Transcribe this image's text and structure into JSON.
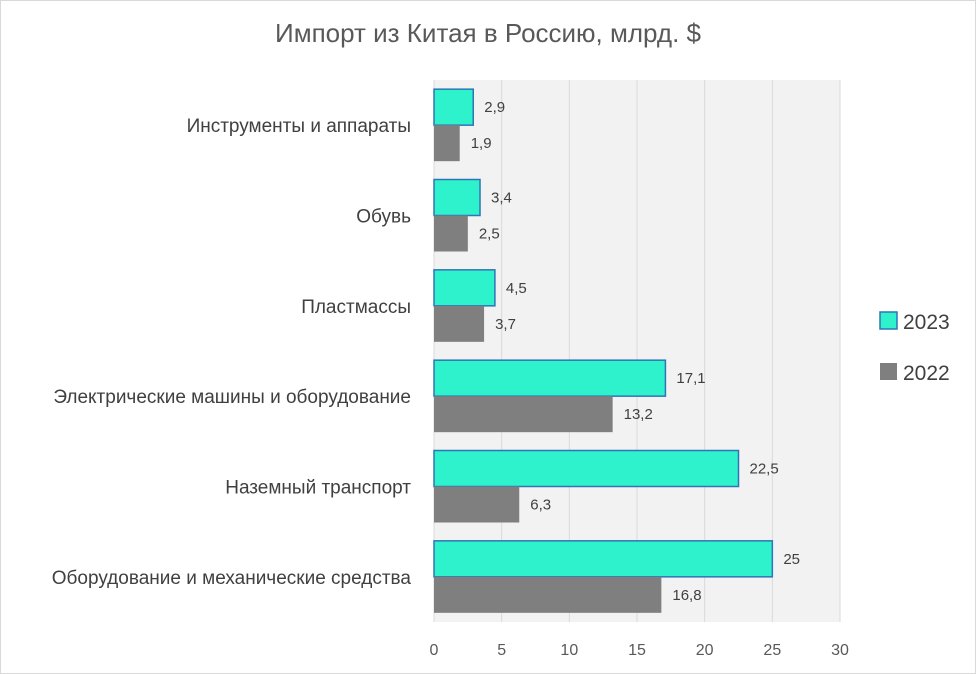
{
  "chart_data": {
    "type": "bar",
    "orientation": "horizontal",
    "title": "Импорт из Китая в Россию, млрд. $",
    "categories": [
      "Инструменты и аппараты",
      "Обувь",
      "Пластмассы",
      "Электрические машины и оборудование",
      "Наземный транспорт",
      "Оборудование и механические средства"
    ],
    "series": [
      {
        "name": "2023",
        "color": "#2ef2cc",
        "values": [
          2.9,
          3.4,
          4.5,
          17.1,
          22.5,
          25
        ]
      },
      {
        "name": "2022",
        "color": "#7f7f7f",
        "values": [
          1.9,
          2.5,
          3.7,
          13.2,
          6.3,
          16.8
        ]
      }
    ],
    "data_labels": {
      "2023": [
        "2,9",
        "3,4",
        "4,5",
        "17,1",
        "22,5",
        "25"
      ],
      "2022": [
        "1,9",
        "2,5",
        "3,7",
        "13,2",
        "6,3",
        "16,8"
      ]
    },
    "xlim": [
      0,
      30
    ],
    "xticks": [
      0,
      5,
      10,
      15,
      20,
      25,
      30
    ],
    "grid": true,
    "legend_position": "right",
    "plot_background": "#f2f2f2",
    "gridline_color": "#d9d9d9",
    "bar_outline_2023": "#2e75b6"
  }
}
